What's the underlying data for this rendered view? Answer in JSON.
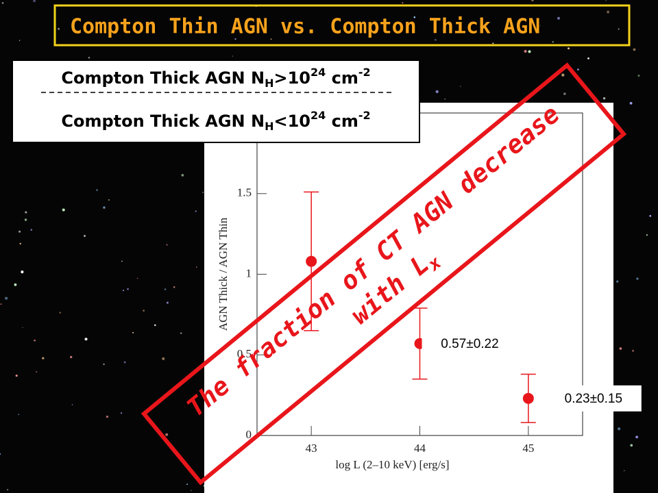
{
  "title": "Compton Thin AGN vs. Compton Thick AGN",
  "legend_box": {
    "lines": [
      [
        "Compton Thick AGN N",
        "H",
        ">10",
        "24",
        " cm",
        "-2"
      ],
      [
        "Compton Thick AGN N",
        "H",
        "<10",
        "24",
        " cm",
        "-2"
      ]
    ]
  },
  "banner": {
    "line1": "The fraction of CT AGN decrease",
    "line2": "with L",
    "line2_sub": "x"
  },
  "chart_data": {
    "type": "errorbar",
    "x_label": "log L (2–10 keV) [erg/s]",
    "y_label": "AGN Thick / AGN Thin",
    "x": [
      43,
      44,
      45
    ],
    "values": [
      1.08,
      0.57,
      0.23
    ],
    "errors": [
      0.43,
      0.22,
      0.15
    ],
    "value_labels": [
      null,
      "0.57±0.22",
      "0.23±0.15"
    ],
    "color": "#e8161b",
    "xlim": [
      42.5,
      45.5
    ],
    "xticks": [
      43,
      44,
      45
    ],
    "ylim": [
      0,
      2
    ],
    "yticks": [
      0,
      0.5,
      1,
      1.5
    ]
  }
}
